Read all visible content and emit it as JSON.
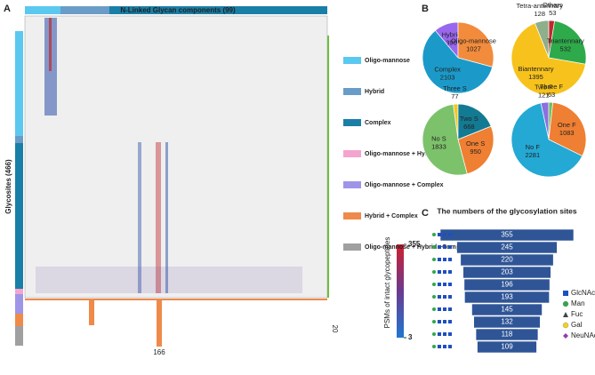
{
  "panels": [
    "A",
    "B",
    "C"
  ],
  "chart_data": [
    {
      "type": "heatmap",
      "title": "N-Linked Glycan components (99)",
      "ylabel": "Glycosites (466)",
      "colorbar_label": "PSMs of intact glycopeptides",
      "clim": [
        3,
        355
      ],
      "legend": [
        {
          "name": "Oligo-mannose",
          "color": "#5bc8f0"
        },
        {
          "name": "Hybrid",
          "color": "#6a9cc8"
        },
        {
          "name": "Complex",
          "color": "#1a7fa6"
        },
        {
          "name": "Oligo-mannose + Hybrid",
          "color": "#f5a3cf"
        },
        {
          "name": "Oligo-mannose + Complex",
          "color": "#9f95e8"
        },
        {
          "name": "Hybrid + Complex",
          "color": "#ef8a4a"
        },
        {
          "name": "Oligo-mannose + Hybrid +Complex",
          "color": "#a0a0a0"
        }
      ],
      "side_label": 20,
      "bottom_label": 166
    },
    {
      "type": "pie",
      "categories": [
        "Hybrid",
        "Oligo-mannose",
        "Complex"
      ],
      "values": [
        390,
        1027,
        2103
      ],
      "colors": [
        "#9966ee",
        "#f28b3c",
        "#1b9ac9"
      ]
    },
    {
      "type": "pie",
      "categories": [
        "Tetra-antennary",
        "Others",
        "Triantennary",
        "Biantennary"
      ],
      "values": [
        128,
        53,
        532,
        1395
      ],
      "colors": [
        "#8fae8a",
        "#c0282d",
        "#2eaa4a",
        "#f7c21c"
      ]
    },
    {
      "type": "pie",
      "categories": [
        "Three S",
        "Two S",
        "One S",
        "No S"
      ],
      "values": [
        77,
        668,
        950,
        1833
      ],
      "colors": [
        "#f2c61f",
        "#137a93",
        "#ef7f32",
        "#7cc26b"
      ]
    },
    {
      "type": "pie",
      "categories": [
        "Two F",
        "Three F",
        "One F",
        "No F"
      ],
      "values": [
        121,
        63,
        1083,
        2281
      ],
      "colors": [
        "#8c6fe0",
        "#6cbf5e",
        "#ef7f32",
        "#23a9d4"
      ]
    },
    {
      "type": "funnel",
      "title": "The numbers of the glycosylation sites",
      "color": "#2f5597",
      "values": [
        355,
        245,
        220,
        203,
        196,
        193,
        145,
        132,
        118,
        109
      ],
      "legend": [
        {
          "name": "GlcNAc",
          "color": "#1f4fbf",
          "shape": "square"
        },
        {
          "name": "Man",
          "color": "#2ea84a",
          "shape": "circle"
        },
        {
          "name": "Fuc",
          "color": "#444444",
          "shape": "triangle"
        },
        {
          "name": "Gal",
          "color": "#f2d21f",
          "shape": "circle"
        },
        {
          "name": "NeuNAc",
          "color": "#8b3fb0",
          "shape": "diamond"
        }
      ]
    }
  ]
}
